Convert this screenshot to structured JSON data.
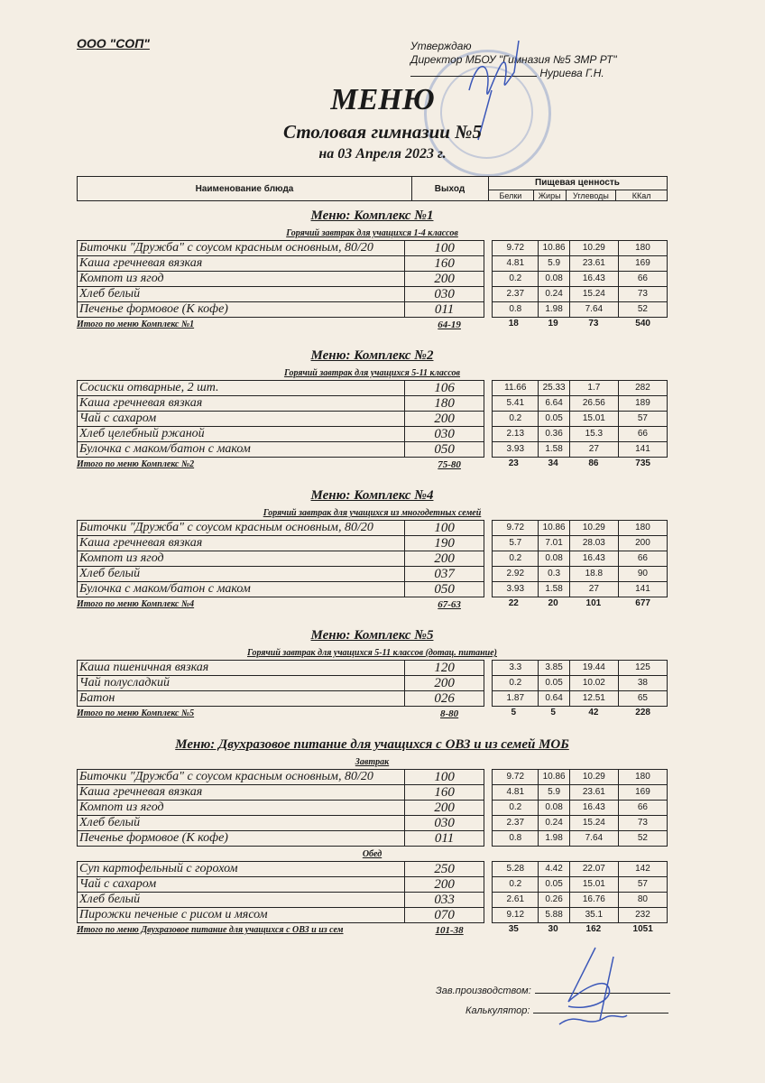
{
  "header": {
    "org": "ООО \"СОП\"",
    "approve_1": "Утверждаю",
    "approve_2": "Директор МБОУ \"Гимназия №5 ЗМР РТ\"",
    "approve_3": "Нуриева Г.Н.",
    "title": "МЕНЮ",
    "subtitle": "Столовая гимназии №5",
    "date": "на 03 Апреля 2023 г."
  },
  "columns": {
    "name": "Наименование блюда",
    "output": "Выход",
    "nutrition": "Пищевая ценность",
    "protein": "Белки",
    "fat": "Жиры",
    "carbs": "Углеводы",
    "kcal": "ККал"
  },
  "menus": [
    {
      "title": "Меню: Комплекс №1",
      "groups": [
        {
          "subtitle": "Горячий завтрак для учащихся 1-4 классов",
          "rows": [
            [
              "Биточки  \"Дружба\" с соусом красным основным, 80/20",
              "100",
              "9.72",
              "10.86",
              "10.29",
              "180"
            ],
            [
              "Каша гречневая вязкая",
              "160",
              "4.81",
              "5.9",
              "23.61",
              "169"
            ],
            [
              "Компот из  ягод",
              "200",
              "0.2",
              "0.08",
              "16.43",
              "66"
            ],
            [
              "Хлеб белый",
              "030",
              "2.37",
              "0.24",
              "15.24",
              "73"
            ],
            [
              "Печенье формовое (К кофе)",
              "011",
              "0.8",
              "1.98",
              "7.64",
              "52"
            ]
          ]
        }
      ],
      "total": [
        "Итого по меню Комплекс №1",
        "64-19",
        "18",
        "19",
        "73",
        "540"
      ]
    },
    {
      "title": "Меню: Комплекс №2",
      "groups": [
        {
          "subtitle": "Горячий завтрак для учащихся 5-11 классов",
          "rows": [
            [
              "Сосиски  отварные, 2 шт.",
              "106",
              "11.66",
              "25.33",
              "1.7",
              "282"
            ],
            [
              "Каша гречневая вязкая",
              "180",
              "5.41",
              "6.64",
              "26.56",
              "189"
            ],
            [
              "Чай с сахаром",
              "200",
              "0.2",
              "0.05",
              "15.01",
              "57"
            ],
            [
              "Хлеб  целебный ржаной",
              "030",
              "2.13",
              "0.36",
              "15.3",
              "66"
            ],
            [
              "Булочка с маком/батон с маком",
              "050",
              "3.93",
              "1.58",
              "27",
              "141"
            ]
          ]
        }
      ],
      "total": [
        "Итого по меню Комплекс №2",
        "75-80",
        "23",
        "34",
        "86",
        "735"
      ]
    },
    {
      "title": "Меню: Комплекс №4",
      "groups": [
        {
          "subtitle": "Горячий завтрак для учащихся из многодетных семей",
          "rows": [
            [
              "Биточки  \"Дружба\" с соусом красным основным, 80/20",
              "100",
              "9.72",
              "10.86",
              "10.29",
              "180"
            ],
            [
              "Каша гречневая вязкая",
              "190",
              "5.7",
              "7.01",
              "28.03",
              "200"
            ],
            [
              "Компот из  ягод",
              "200",
              "0.2",
              "0.08",
              "16.43",
              "66"
            ],
            [
              "Хлеб белый",
              "037",
              "2.92",
              "0.3",
              "18.8",
              "90"
            ],
            [
              "Булочка с маком/батон с маком",
              "050",
              "3.93",
              "1.58",
              "27",
              "141"
            ]
          ]
        }
      ],
      "total": [
        "Итого по меню Комплекс №4",
        "67-63",
        "22",
        "20",
        "101",
        "677"
      ]
    },
    {
      "title": "Меню: Комплекс №5",
      "groups": [
        {
          "subtitle": "Горячий завтрак для учащихся 5-11 классов (дотац. питание)",
          "rows": [
            [
              "Каша пшеничная вязкая",
              "120",
              "3.3",
              "3.85",
              "19.44",
              "125"
            ],
            [
              "Чай полусладкий",
              "200",
              "0.2",
              "0.05",
              "10.02",
              "38"
            ],
            [
              "Батон",
              "026",
              "1.87",
              "0.64",
              "12.51",
              "65"
            ]
          ]
        }
      ],
      "total": [
        "Итого по меню Комплекс №5",
        "8-80",
        "5",
        "5",
        "42",
        "228"
      ]
    },
    {
      "title": "Меню: Двухразовое питание для учащихся с ОВЗ и из семей МОБ",
      "groups": [
        {
          "subtitle": "Завтрак",
          "rows": [
            [
              "Биточки  \"Дружба\" с соусом красным основным, 80/20",
              "100",
              "9.72",
              "10.86",
              "10.29",
              "180"
            ],
            [
              "Каша гречневая вязкая",
              "160",
              "4.81",
              "5.9",
              "23.61",
              "169"
            ],
            [
              "Компот из  ягод",
              "200",
              "0.2",
              "0.08",
              "16.43",
              "66"
            ],
            [
              "Хлеб белый",
              "030",
              "2.37",
              "0.24",
              "15.24",
              "73"
            ],
            [
              "Печенье формовое (К кофе)",
              "011",
              "0.8",
              "1.98",
              "7.64",
              "52"
            ]
          ]
        },
        {
          "subtitle": "Обед",
          "rows": [
            [
              "Суп картофельный с горохом",
              "250",
              "5.28",
              "4.42",
              "22.07",
              "142"
            ],
            [
              "Чай с сахаром",
              "200",
              "0.2",
              "0.05",
              "15.01",
              "57"
            ],
            [
              "Хлеб белый",
              "033",
              "2.61",
              "0.26",
              "16.76",
              "80"
            ],
            [
              "Пирожки печеные с рисом и мясом",
              "070",
              "9.12",
              "5.88",
              "35.1",
              "232"
            ]
          ]
        }
      ],
      "total": [
        "Итого по меню Двухразовое питание для учащихся с ОВЗ и из сем",
        "101-38",
        "35",
        "30",
        "162",
        "1051"
      ]
    }
  ],
  "footer": {
    "production": "Зав.производством:",
    "calculator": "Калькулятор:"
  }
}
